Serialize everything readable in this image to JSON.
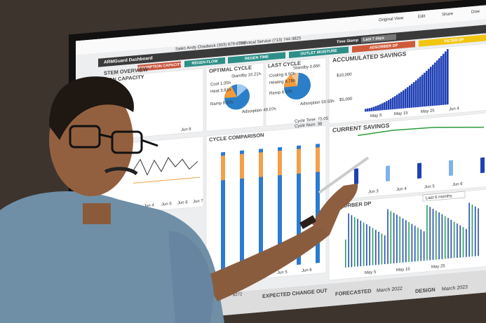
{
  "toolbar": {
    "items": [
      "Original View",
      "Edit",
      "Share",
      "Dow"
    ]
  },
  "contacts": {
    "sales": "Sales  Andy Chadwick  (303) 679-6776",
    "technical": "Technical Service  (713) 744-3825"
  },
  "dashboard": {
    "title": "ARMGuard Dashboard",
    "timestamp_label": "Time Stamp",
    "timestamp_value": "Last 7 days"
  },
  "tabs": [
    "ADSORPTION CAPACITY",
    "REGEN FLOW",
    "REGEN TIME",
    "OUTLET MOISTURE",
    "ADSORBER DP",
    "FILTER DP"
  ],
  "panels": {
    "overview": "STEM OVERVIEW",
    "capacity": "TION CAPACITY",
    "capacity_x": "Jun 6",
    "optimal": {
      "title": "OPTIMAL CYCLE",
      "labels": [
        "Standby 10.21h",
        "Cool 1.05h",
        "Heat 3.81h",
        "Ramp 8.57h",
        "Adsorption 49.07h"
      ]
    },
    "last": {
      "title": "LAST CYCLE",
      "labels": [
        "Standby 0.65h",
        "Cooling 6.50h",
        "Heating 8.78h",
        "Ramp 8.57h",
        "Adsorption 50.55h"
      ]
    },
    "accumulated": {
      "title": "ACCUMULATED SAVINGS",
      "yticks": [
        "$10,000",
        "$5,000"
      ],
      "xticks": [
        "May 5",
        "May 15",
        "May 25",
        "Jun 4"
      ]
    },
    "comparison": {
      "title": "CYCLE COMPARISON",
      "cycle_time": "Cycle Time: 75.05",
      "cycle_num": "Cycle Num: 38",
      "xticks": [
        "Jun 5",
        "Jun 6"
      ]
    },
    "current": {
      "title": "CURRENT SAVINGS",
      "xticks": [
        "Jun 3",
        "Jun 4",
        "Jun 5",
        "Jun 6"
      ]
    },
    "adsorber": {
      "title": "ADSORBER DP",
      "range": "Last 6 months",
      "xticks": [
        "May 5",
        "May 15",
        "May 25"
      ]
    },
    "left_xticks": [
      "Jun 4",
      "Jun 5",
      "Jun 6",
      "Jun 7"
    ]
  },
  "footer": {
    "amount": "$272",
    "expected": "EXPECTED CHANGE OUT",
    "forecasted": "FORECASTED",
    "forecasted_date": "March 2022",
    "design": "DESIGN",
    "design_date": "March 2023"
  }
}
